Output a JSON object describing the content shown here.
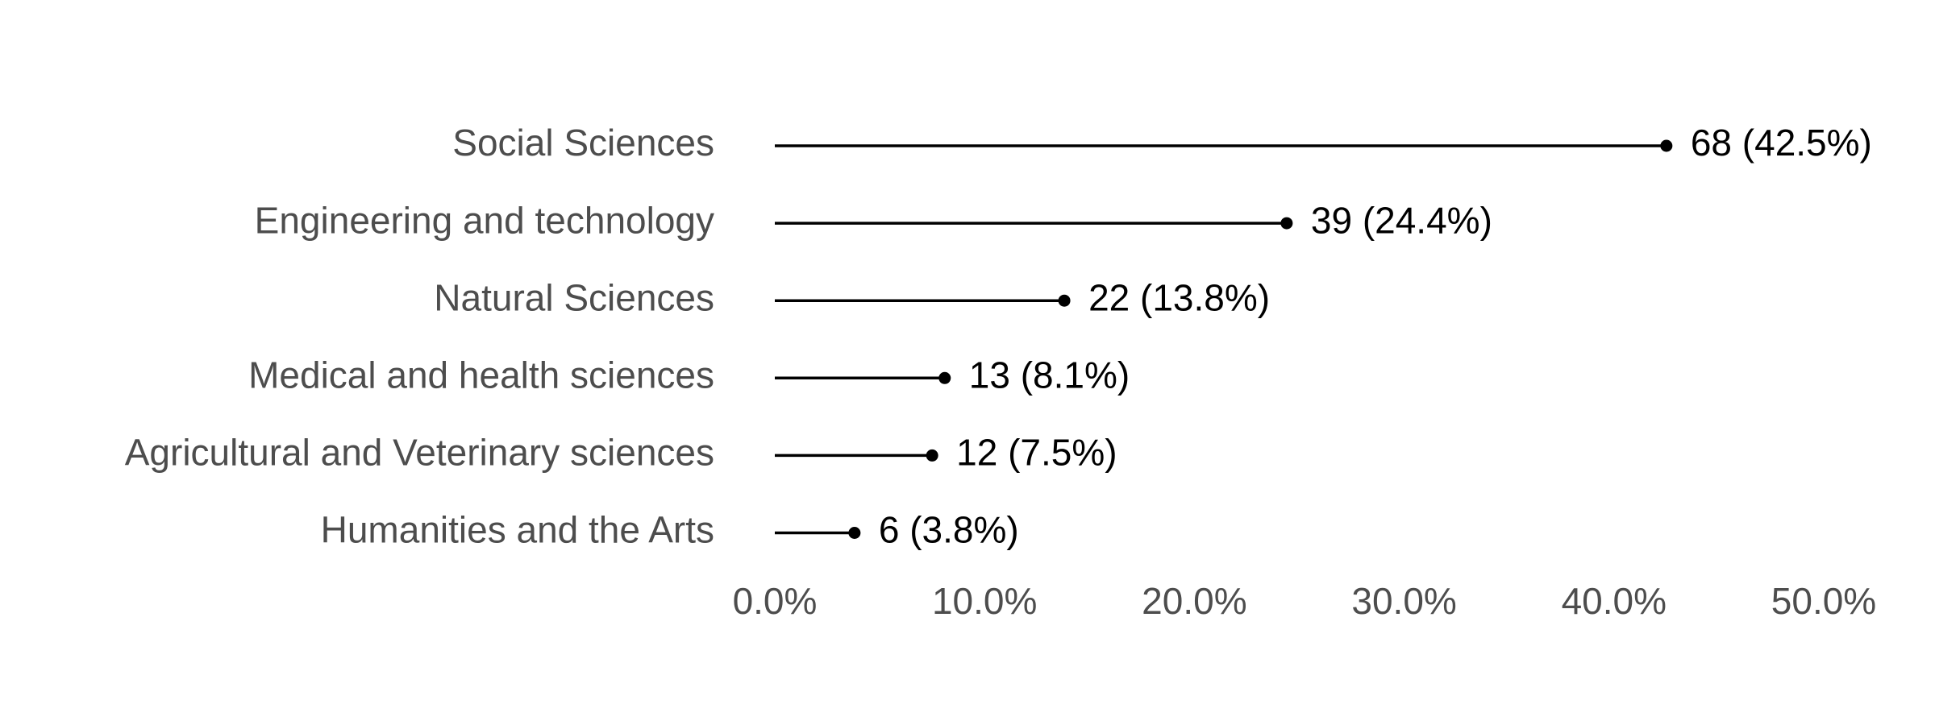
{
  "chart_data": {
    "type": "lollipop",
    "orientation": "horizontal",
    "categories": [
      "Social Sciences",
      "Engineering and technology",
      "Natural Sciences",
      "Medical and health sciences",
      "Agricultural and Veterinary sciences",
      "Humanities and the Arts"
    ],
    "values": [
      42.5,
      24.4,
      13.8,
      8.1,
      7.5,
      3.8
    ],
    "value_labels": [
      "68 (42.5%)",
      "39 (24.4%)",
      "22 (13.8%)",
      "13 (8.1%)",
      "12 (7.5%)",
      "6 (3.8%)"
    ],
    "color": "#000000",
    "xlim": [
      0,
      50
    ],
    "xticks": [
      {
        "value": 0,
        "label": "0.0%"
      },
      {
        "value": 10,
        "label": "10.0%"
      },
      {
        "value": 20,
        "label": "20.0%"
      },
      {
        "value": 30,
        "label": "30.0%"
      },
      {
        "value": 40,
        "label": "40.0%"
      },
      {
        "value": 50,
        "label": "50.0%"
      }
    ],
    "grid": false
  }
}
